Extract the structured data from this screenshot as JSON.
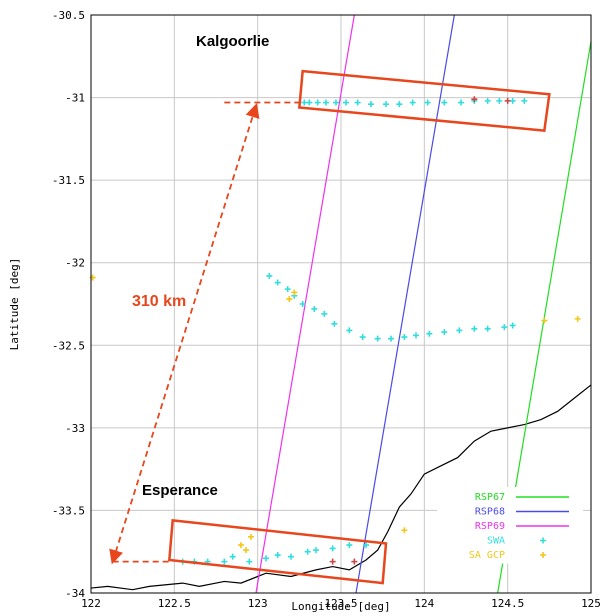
{
  "chart_data": {
    "type": "scatter",
    "xlabel": "Longitude [deg]",
    "ylabel": "Latitude [deg]",
    "xlim": [
      122,
      125
    ],
    "ylim": [
      -34,
      -30.5
    ],
    "x_ticks": [
      "122",
      "122.5",
      "123",
      "123.5",
      "124",
      "124.5",
      "125"
    ],
    "y_ticks": [
      "-30.5",
      "-31",
      "-31.5",
      "-32",
      "-32.5",
      "-33",
      "-33.5",
      "-34"
    ],
    "grid": true,
    "legend_position": "bottom-right",
    "series": [
      {
        "name": "RSP67",
        "kind": "line",
        "color": "#22dd22",
        "x": [
          124.44,
          125.0
        ],
        "y": [
          -34.0,
          -30.66
        ]
      },
      {
        "name": "RSP68",
        "kind": "line",
        "color": "#4a4ae8",
        "x": [
          123.59,
          124.18
        ],
        "y": [
          -34.0,
          -30.5
        ]
      },
      {
        "name": "RSP69",
        "kind": "line",
        "color": "#ee33ee",
        "x": [
          122.99,
          123.58
        ],
        "y": [
          -34.0,
          -30.5
        ]
      },
      {
        "name": "SWA",
        "kind": "points",
        "marker": "plus",
        "color": "#33dddd",
        "x": [
          123.28,
          123.31,
          123.36,
          123.41,
          123.47,
          123.53,
          123.6,
          123.68,
          123.77,
          123.85,
          123.93,
          124.02,
          124.12,
          124.22,
          124.3,
          124.38,
          124.45,
          124.53,
          124.6,
          123.07,
          123.12,
          123.18,
          123.22,
          123.27,
          123.34,
          123.4,
          123.46,
          123.55,
          123.63,
          123.72,
          123.8,
          123.88,
          123.95,
          124.03,
          124.12,
          124.21,
          124.3,
          124.38,
          124.48,
          124.53,
          122.55,
          122.62,
          122.7,
          122.8,
          122.85,
          122.95,
          123.05,
          123.12,
          123.2,
          123.3,
          123.35,
          123.45,
          123.55,
          123.65
        ],
        "y": [
          -31.03,
          -31.03,
          -31.03,
          -31.03,
          -31.03,
          -31.03,
          -31.03,
          -31.04,
          -31.04,
          -31.04,
          -31.03,
          -31.03,
          -31.03,
          -31.03,
          -31.02,
          -31.02,
          -31.02,
          -31.02,
          -31.02,
          -32.08,
          -32.12,
          -32.16,
          -32.2,
          -32.25,
          -32.28,
          -32.31,
          -32.37,
          -32.41,
          -32.45,
          -32.46,
          -32.46,
          -32.45,
          -32.44,
          -32.43,
          -32.42,
          -32.41,
          -32.4,
          -32.4,
          -32.39,
          -32.38,
          -33.81,
          -33.81,
          -33.81,
          -33.81,
          -33.78,
          -33.81,
          -33.79,
          -33.77,
          -33.78,
          -33.75,
          -33.74,
          -33.73,
          -33.71,
          -33.71
        ]
      },
      {
        "name": "SA_GCP",
        "kind": "points",
        "marker": "plus",
        "color": "#f2c71c",
        "x": [
          122.01,
          123.19,
          123.22,
          124.72,
          124.92,
          122.9,
          122.93,
          122.96,
          123.88
        ],
        "y": [
          -32.09,
          -32.22,
          -32.18,
          -32.35,
          -32.34,
          -33.71,
          -33.74,
          -33.66,
          -33.62
        ]
      },
      {
        "name": "",
        "kind": "points",
        "marker": "plus",
        "color": "#cc4444",
        "x": [
          124.3,
          124.5,
          123.45,
          123.58
        ],
        "y": [
          -31.01,
          -31.02,
          -33.81,
          -33.81
        ]
      }
    ],
    "legend": [
      {
        "label": "RSP67",
        "color": "#22dd22",
        "sample": "line"
      },
      {
        "label": "RSP68",
        "color": "#4a4ae8",
        "sample": "line"
      },
      {
        "label": "RSP69",
        "color": "#ee33ee",
        "sample": "line"
      },
      {
        "label": "SWA",
        "color": "#33dddd",
        "sample": "plus"
      },
      {
        "label": "SA GCP",
        "color": "#f2c71c",
        "sample": "plus"
      }
    ],
    "annotations": {
      "kalgoorlie_label": "Kalgoorlie",
      "esperance_label": "Esperance",
      "distance_label": "310 km",
      "highlight_color": "#e8461c",
      "kalgoorlie_box": [
        [
          123.27,
          -30.84
        ],
        [
          124.75,
          -30.98
        ],
        [
          124.72,
          -31.2
        ],
        [
          123.25,
          -31.06
        ]
      ],
      "esperance_box": [
        [
          122.49,
          -33.56
        ],
        [
          123.77,
          -33.7
        ],
        [
          123.75,
          -33.94
        ],
        [
          122.47,
          -33.8
        ]
      ],
      "distance_arrow": {
        "from": [
          122.13,
          -33.81
        ],
        "to": [
          122.99,
          -31.05
        ]
      },
      "kalgoorlie_leader": {
        "from": [
          122.8,
          -31.03
        ],
        "to": [
          123.26,
          -31.03
        ]
      },
      "esperance_leader": {
        "from": [
          122.13,
          -33.81
        ],
        "to": [
          122.47,
          -33.81
        ]
      }
    },
    "coastline": {
      "color": "#000000",
      "x": [
        122.0,
        122.1,
        122.25,
        122.35,
        122.45,
        122.55,
        122.65,
        122.8,
        122.9,
        123.05,
        123.2,
        123.35,
        123.45,
        123.55,
        123.65,
        123.72,
        123.78,
        123.85,
        123.92,
        124.0,
        124.1,
        124.2,
        124.3,
        124.4,
        124.5,
        124.6,
        124.7,
        124.8,
        124.9,
        125.0
      ],
      "y": [
        -33.97,
        -33.96,
        -33.98,
        -33.96,
        -33.95,
        -33.94,
        -33.96,
        -33.93,
        -33.94,
        -33.88,
        -33.9,
        -33.86,
        -33.84,
        -33.86,
        -33.8,
        -33.74,
        -33.63,
        -33.48,
        -33.4,
        -33.28,
        -33.23,
        -33.18,
        -33.08,
        -33.02,
        -33.0,
        -32.98,
        -32.95,
        -32.9,
        -32.82,
        -32.74
      ]
    }
  }
}
